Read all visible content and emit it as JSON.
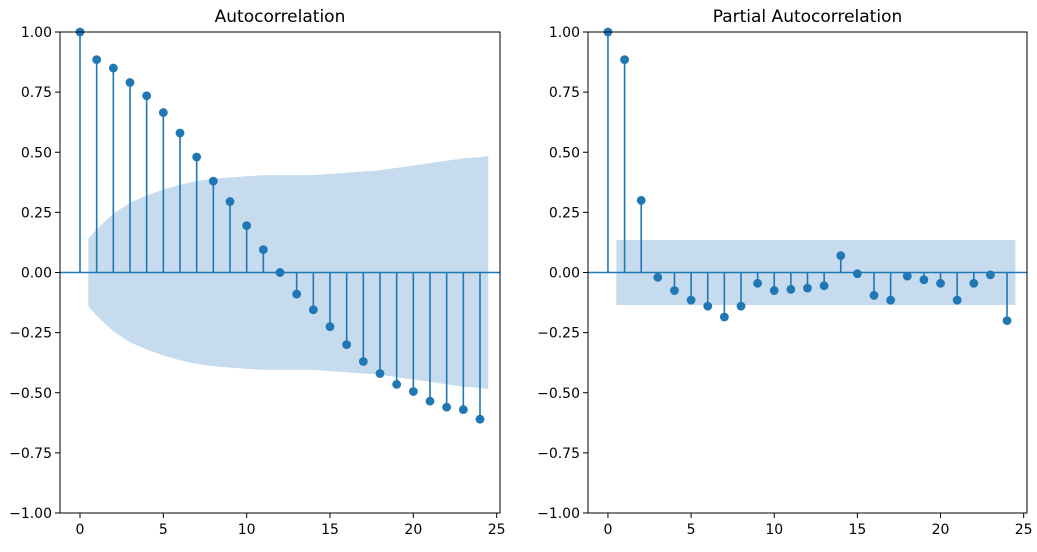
{
  "chart_data": [
    {
      "type": "stem",
      "title": "Autocorrelation",
      "xlabel": "",
      "ylabel": "",
      "xlim": [
        -1.2,
        25.2
      ],
      "ylim": [
        -1.0,
        1.0
      ],
      "xticks": [
        0,
        5,
        10,
        15,
        20,
        25
      ],
      "xtick_labels": [
        "0",
        "5",
        "10",
        "15",
        "20",
        "25"
      ],
      "yticks": [
        1.0,
        0.75,
        0.5,
        0.25,
        0.0,
        -0.25,
        -0.5,
        -0.75,
        -1.0
      ],
      "ytick_labels": [
        "1.00",
        "0.75",
        "0.50",
        "0.25",
        "0.00",
        "−0.25",
        "−0.50",
        "−0.75",
        "−1.00"
      ],
      "x": [
        0,
        1,
        2,
        3,
        4,
        5,
        6,
        7,
        8,
        9,
        10,
        11,
        12,
        13,
        14,
        15,
        16,
        17,
        18,
        19,
        20,
        21,
        22,
        23,
        24
      ],
      "values": [
        1.0,
        0.885,
        0.85,
        0.79,
        0.735,
        0.665,
        0.58,
        0.48,
        0.38,
        0.295,
        0.195,
        0.095,
        0.0,
        -0.09,
        -0.155,
        -0.225,
        -0.3,
        -0.37,
        -0.42,
        -0.465,
        -0.495,
        -0.535,
        -0.56,
        -0.57,
        -0.61
      ],
      "confidence_band": {
        "x": [
          0.5,
          1,
          2,
          3,
          4,
          5,
          6,
          7,
          8,
          9,
          10,
          11,
          12,
          13,
          14,
          15,
          16,
          17,
          18,
          19,
          20,
          21,
          22,
          23,
          24,
          24.5
        ],
        "upper": [
          0.14,
          0.18,
          0.245,
          0.29,
          0.32,
          0.345,
          0.365,
          0.38,
          0.39,
          0.395,
          0.4,
          0.405,
          0.405,
          0.405,
          0.405,
          0.41,
          0.415,
          0.42,
          0.425,
          0.435,
          0.445,
          0.455,
          0.465,
          0.475,
          0.48,
          0.485
        ]
      },
      "colors": {
        "stem": "#1f77b4",
        "band": "#c6dbee"
      }
    },
    {
      "type": "stem",
      "title": "Partial Autocorrelation",
      "xlabel": "",
      "ylabel": "",
      "xlim": [
        -1.2,
        25.2
      ],
      "ylim": [
        -1.0,
        1.0
      ],
      "xticks": [
        0,
        5,
        10,
        15,
        20,
        25
      ],
      "xtick_labels": [
        "0",
        "5",
        "10",
        "15",
        "20",
        "25"
      ],
      "yticks": [
        1.0,
        0.75,
        0.5,
        0.25,
        0.0,
        -0.25,
        -0.5,
        -0.75,
        -1.0
      ],
      "ytick_labels": [
        "1.00",
        "0.75",
        "0.50",
        "0.25",
        "0.00",
        "−0.25",
        "−0.50",
        "−0.75",
        "−1.00"
      ],
      "x": [
        0,
        1,
        2,
        3,
        4,
        5,
        6,
        7,
        8,
        9,
        10,
        11,
        12,
        13,
        14,
        15,
        16,
        17,
        18,
        19,
        20,
        21,
        22,
        23,
        24
      ],
      "values": [
        1.0,
        0.885,
        0.3,
        -0.02,
        -0.075,
        -0.115,
        -0.14,
        -0.185,
        -0.14,
        -0.045,
        -0.075,
        -0.07,
        -0.065,
        -0.055,
        0.07,
        -0.005,
        -0.095,
        -0.115,
        -0.015,
        -0.03,
        -0.045,
        -0.115,
        -0.045,
        -0.01,
        -0.2
      ],
      "confidence_band": {
        "x": [
          0.5,
          24.5
        ],
        "upper": [
          0.135,
          0.135
        ]
      },
      "colors": {
        "stem": "#1f77b4",
        "band": "#c6dbee"
      }
    }
  ]
}
